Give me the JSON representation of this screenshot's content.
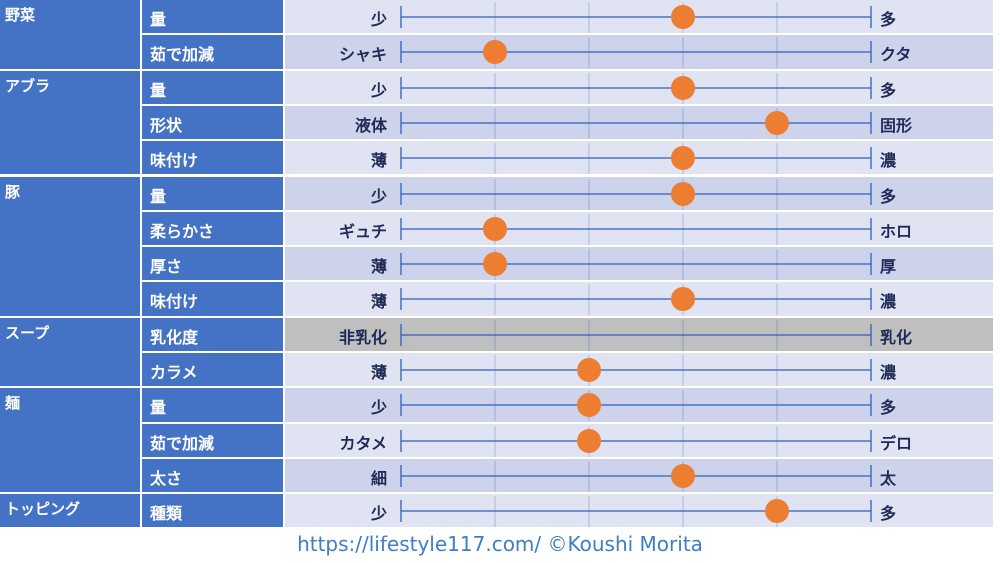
{
  "chart_data": {
    "type": "table",
    "scale": {
      "min": 0,
      "max": 5
    },
    "colors": {
      "category_bg": "#4472c4",
      "row_even": "#dfe3f2",
      "row_odd": "#cdd3ea",
      "row_na": "#bfbfbf",
      "axis_line": "#2e5fbf",
      "marker": "#ed7d31",
      "label_text": "#1f2a56"
    },
    "rows": [
      {
        "category": "野菜",
        "item": "量",
        "left": "少",
        "right": "多",
        "value": 3
      },
      {
        "category": "",
        "item": "茹で加減",
        "left": "シャキ",
        "right": "クタ",
        "value": 1
      },
      {
        "category": "アブラ",
        "item": "量",
        "left": "少",
        "right": "多",
        "value": 3
      },
      {
        "category": "",
        "item": "形状",
        "left": "液体",
        "right": "固形",
        "value": 4
      },
      {
        "category": "",
        "item": "味付け",
        "left": "薄",
        "right": "濃",
        "value": 3
      },
      {
        "category": "豚",
        "item": "量",
        "left": "少",
        "right": "多",
        "value": 3
      },
      {
        "category": "",
        "item": "柔らかさ",
        "left": "ギュチ",
        "right": "ホロ",
        "value": 1
      },
      {
        "category": "",
        "item": "厚さ",
        "left": "薄",
        "right": "厚",
        "value": 1
      },
      {
        "category": "",
        "item": "味付け",
        "left": "薄",
        "right": "濃",
        "value": 3
      },
      {
        "category": "スープ",
        "item": "乳化度",
        "left": "非乳化",
        "right": "乳化",
        "value": null
      },
      {
        "category": "",
        "item": "カラメ",
        "left": "薄",
        "right": "濃",
        "value": 2
      },
      {
        "category": "麺",
        "item": "量",
        "left": "少",
        "right": "多",
        "value": 2
      },
      {
        "category": "",
        "item": "茹で加減",
        "left": "カタメ",
        "right": "デロ",
        "value": 2
      },
      {
        "category": "",
        "item": "太さ",
        "left": "細",
        "right": "太",
        "value": 3
      },
      {
        "category": "トッピング",
        "item": "種類",
        "left": "少",
        "right": "多",
        "value": 4
      }
    ]
  },
  "footer": {
    "credit": "https://lifestyle117.com/  ©Koushi Morita"
  }
}
